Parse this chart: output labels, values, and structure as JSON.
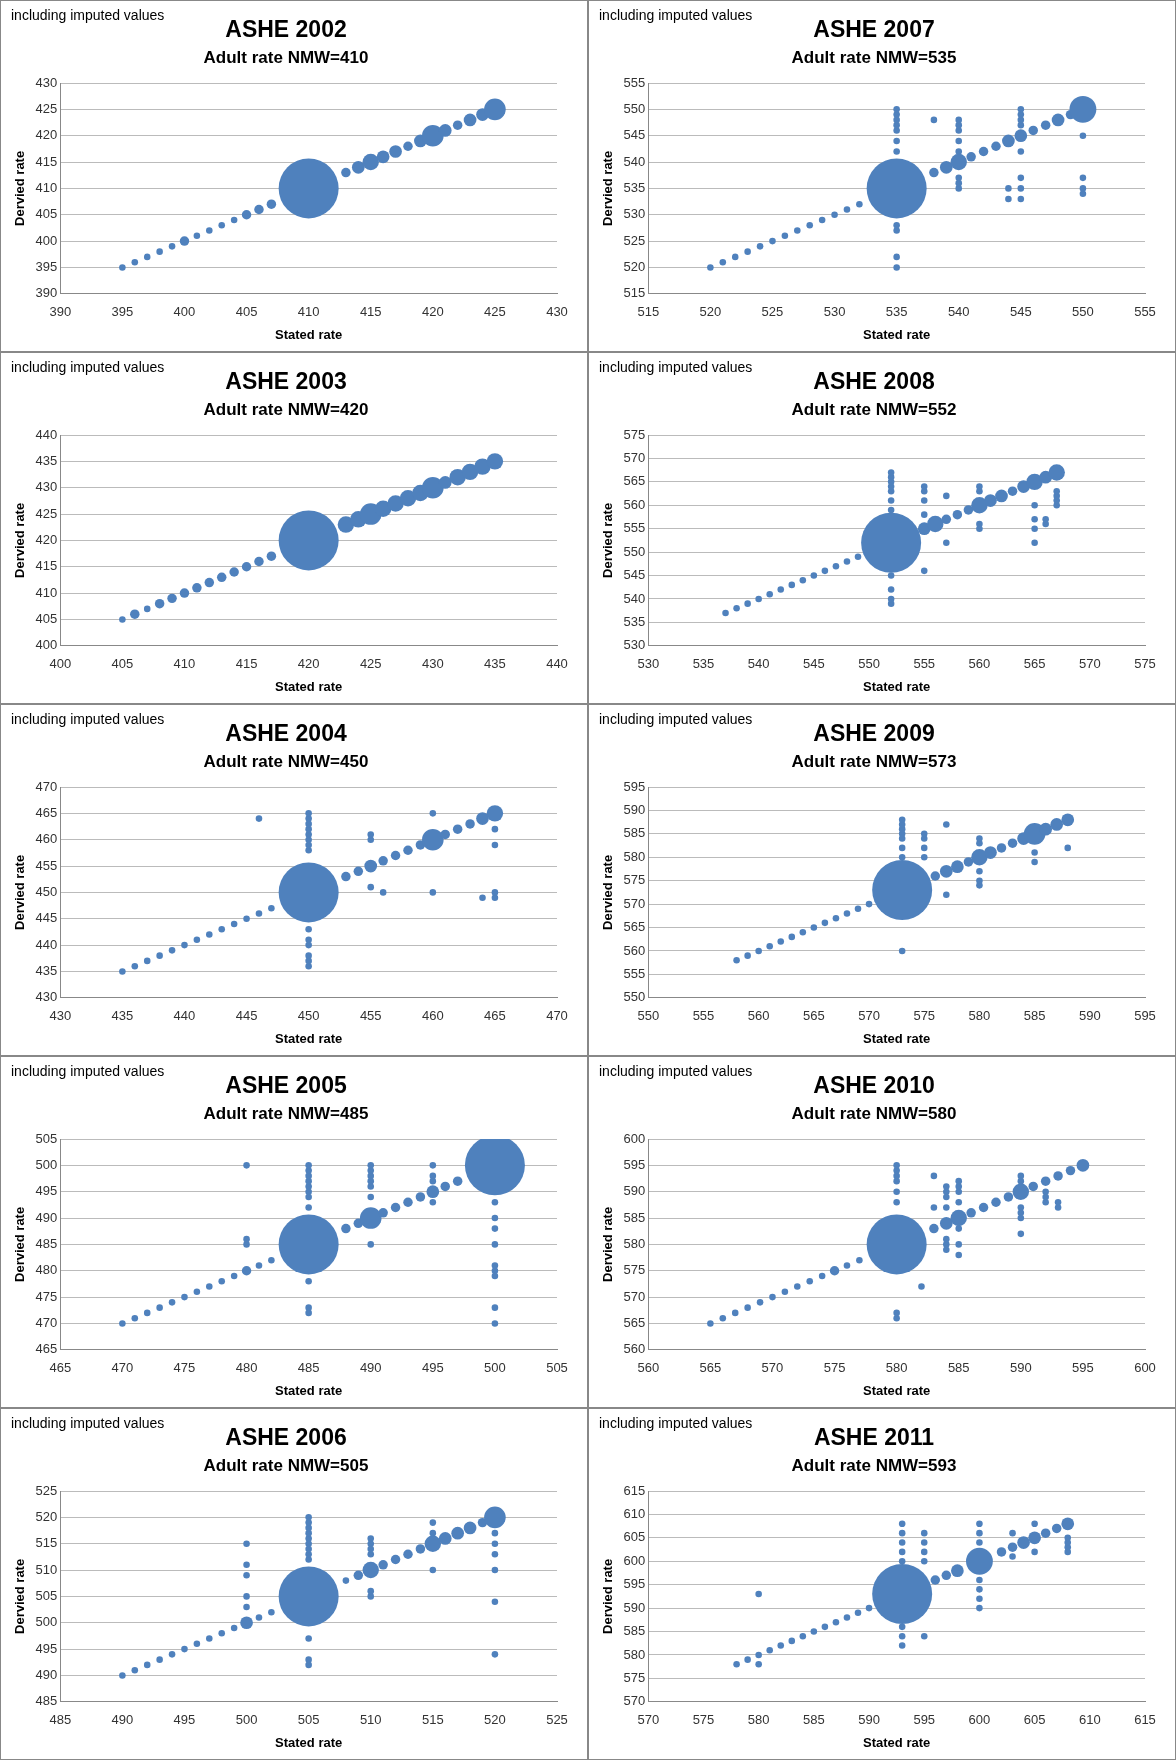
{
  "chart_data": [
    {
      "type": "bubble",
      "title": "ASHE 2002",
      "subtitle": "Adult rate NMW=410",
      "xlabel": "Stated rate",
      "ylabel": "Dervied rate",
      "annotations": [
        "including imputed values"
      ],
      "color": "#4f81bd",
      "grid": "y",
      "x": [
        395,
        396,
        397,
        398,
        399,
        400,
        401,
        402,
        403,
        404,
        405,
        406,
        407,
        410,
        413,
        414,
        415,
        416,
        417,
        418,
        419,
        420,
        421,
        422,
        423,
        424,
        425
      ],
      "values": [
        395,
        396,
        397,
        398,
        399,
        400,
        401,
        402,
        403,
        404,
        405,
        406,
        407,
        410,
        413,
        414,
        415,
        416,
        417,
        418,
        419,
        420,
        421,
        422,
        423,
        424,
        425
      ],
      "sizes": [
        0.012,
        0.012,
        0.012,
        0.012,
        0.012,
        0.025,
        0.012,
        0.012,
        0.012,
        0.012,
        0.025,
        0.025,
        0.025,
        1,
        0.025,
        0.045,
        0.075,
        0.045,
        0.045,
        0.025,
        0.045,
        0.13,
        0.045,
        0.025,
        0.045,
        0.045,
        0.13
      ],
      "xlim": [
        390,
        430
      ],
      "xticks": [
        390,
        395,
        400,
        405,
        410,
        415,
        420,
        425,
        430
      ],
      "ylim": [
        390,
        430
      ],
      "yticks": [
        390,
        395,
        400,
        405,
        410,
        415,
        420,
        425,
        430
      ]
    },
    {
      "type": "bubble",
      "title": "ASHE 2007",
      "subtitle": "Adult rate NMW=535",
      "xlabel": "Stated rate",
      "ylabel": "Dervied rate",
      "annotations": [
        "including imputed values"
      ],
      "color": "#4f81bd",
      "grid": "y",
      "x": [
        520,
        521,
        522,
        523,
        524,
        525,
        526,
        527,
        528,
        529,
        530,
        531,
        532,
        535,
        538,
        539,
        540,
        541,
        542,
        543,
        544,
        545,
        546,
        547,
        548,
        549,
        550,
        535,
        535,
        535,
        535,
        535,
        535,
        535,
        535,
        535,
        535,
        535,
        540,
        540,
        540,
        540,
        540,
        540,
        540,
        540,
        545,
        545,
        545,
        545,
        545,
        545,
        545,
        545,
        550,
        550,
        550,
        550,
        544,
        544,
        538
      ],
      "values": [
        520,
        521,
        522,
        523,
        524,
        525,
        526,
        527,
        528,
        529,
        530,
        531,
        532,
        535,
        538,
        539,
        540,
        541,
        542,
        543,
        544,
        545,
        546,
        547,
        548,
        549,
        550,
        520,
        522,
        527,
        528,
        542,
        544,
        546,
        547,
        548,
        549,
        550,
        535,
        536,
        537,
        542,
        544,
        546,
        547,
        548,
        533,
        535,
        537,
        542,
        547,
        548,
        549,
        550,
        534,
        535,
        537,
        545,
        533,
        535,
        548
      ],
      "sizes": [
        0.012,
        0.012,
        0.012,
        0.012,
        0.012,
        0.012,
        0.012,
        0.012,
        0.012,
        0.012,
        0.012,
        0.012,
        0.012,
        1,
        0.025,
        0.045,
        0.075,
        0.025,
        0.025,
        0.025,
        0.045,
        0.045,
        0.025,
        0.025,
        0.045,
        0.025,
        0.2,
        0.012,
        0.012,
        0.012,
        0.012,
        0.012,
        0.012,
        0.012,
        0.012,
        0.012,
        0.012,
        0.012,
        0.012,
        0.012,
        0.012,
        0.012,
        0.012,
        0.012,
        0.012,
        0.012,
        0.012,
        0.012,
        0.012,
        0.012,
        0.012,
        0.012,
        0.012,
        0.012,
        0.012,
        0.012,
        0.012,
        0.012,
        0.012,
        0.012,
        0.012
      ],
      "xlim": [
        515,
        555
      ],
      "xticks": [
        515,
        520,
        525,
        530,
        535,
        540,
        545,
        550,
        555
      ],
      "ylim": [
        515,
        555
      ],
      "yticks": [
        515,
        520,
        525,
        530,
        535,
        540,
        545,
        550,
        555
      ]
    },
    {
      "type": "bubble",
      "title": "ASHE 2003",
      "subtitle": "Adult rate NMW=420",
      "xlabel": "Stated rate",
      "ylabel": "Dervied rate",
      "annotations": [
        "including imputed values"
      ],
      "color": "#4f81bd",
      "grid": "y",
      "x": [
        405,
        406,
        407,
        408,
        409,
        410,
        411,
        412,
        413,
        414,
        415,
        416,
        417,
        420,
        423,
        424,
        425,
        426,
        427,
        428,
        429,
        430,
        431,
        432,
        433,
        434,
        435
      ],
      "values": [
        405,
        406,
        407,
        408,
        409,
        410,
        411,
        412,
        413,
        414,
        415,
        416,
        417,
        420,
        423,
        424,
        425,
        426,
        427,
        428,
        429,
        430,
        431,
        432,
        433,
        434,
        435
      ],
      "sizes": [
        0.012,
        0.025,
        0.012,
        0.025,
        0.025,
        0.025,
        0.025,
        0.025,
        0.025,
        0.025,
        0.025,
        0.025,
        0.025,
        1,
        0.075,
        0.075,
        0.13,
        0.075,
        0.075,
        0.075,
        0.075,
        0.13,
        0.045,
        0.075,
        0.075,
        0.075,
        0.075
      ],
      "xlim": [
        400,
        440
      ],
      "xticks": [
        400,
        405,
        410,
        415,
        420,
        425,
        430,
        435,
        440
      ],
      "ylim": [
        400,
        440
      ],
      "yticks": [
        400,
        405,
        410,
        415,
        420,
        425,
        430,
        435,
        440
      ]
    },
    {
      "type": "bubble",
      "title": "ASHE 2008",
      "subtitle": "Adult rate NMW=552",
      "xlabel": "Stated rate",
      "ylabel": "Dervied rate",
      "annotations": [
        "including imputed values"
      ],
      "color": "#4f81bd",
      "grid": "y",
      "x": [
        537,
        538,
        539,
        540,
        541,
        542,
        543,
        544,
        545,
        546,
        547,
        548,
        549,
        552,
        555,
        556,
        557,
        558,
        559,
        560,
        561,
        562,
        563,
        564,
        565,
        566,
        567,
        552,
        552,
        552,
        552,
        552,
        552,
        552,
        552,
        552,
        552,
        552,
        555,
        555,
        555,
        555,
        555,
        557,
        557,
        560,
        560,
        560,
        560,
        565,
        565,
        565,
        565,
        566,
        566,
        567,
        567,
        567,
        567
      ],
      "values": [
        537,
        538,
        539,
        540,
        541,
        542,
        543,
        544,
        545,
        546,
        547,
        548,
        549,
        552,
        555,
        556,
        557,
        558,
        559,
        560,
        561,
        562,
        563,
        564,
        565,
        566,
        567,
        539,
        540,
        542,
        545,
        559,
        561,
        563,
        564,
        565,
        566,
        567,
        546,
        558,
        561,
        563,
        564,
        552,
        562,
        555,
        556,
        563,
        564,
        552,
        555,
        557,
        560,
        556,
        557,
        560,
        561,
        562,
        563
      ],
      "sizes": [
        0.012,
        0.012,
        0.012,
        0.012,
        0.012,
        0.012,
        0.012,
        0.012,
        0.012,
        0.012,
        0.012,
        0.012,
        0.012,
        1,
        0.045,
        0.075,
        0.025,
        0.025,
        0.025,
        0.075,
        0.045,
        0.045,
        0.025,
        0.045,
        0.075,
        0.045,
        0.075,
        0.012,
        0.012,
        0.012,
        0.012,
        0.012,
        0.012,
        0.012,
        0.012,
        0.012,
        0.012,
        0.012,
        0.012,
        0.012,
        0.012,
        0.012,
        0.012,
        0.012,
        0.012,
        0.012,
        0.012,
        0.012,
        0.012,
        0.012,
        0.012,
        0.012,
        0.012,
        0.012,
        0.012,
        0.012,
        0.012,
        0.012,
        0.012
      ],
      "xlim": [
        530,
        575
      ],
      "xticks": [
        530,
        535,
        540,
        545,
        550,
        555,
        560,
        565,
        570,
        575
      ],
      "ylim": [
        530,
        575
      ],
      "yticks": [
        530,
        535,
        540,
        545,
        550,
        555,
        560,
        565,
        570,
        575
      ]
    },
    {
      "type": "bubble",
      "title": "ASHE 2004",
      "subtitle": "Adult rate NMW=450",
      "xlabel": "Stated rate",
      "ylabel": "Dervied rate",
      "annotations": [
        "including imputed values"
      ],
      "color": "#4f81bd",
      "grid": "y",
      "x": [
        435,
        436,
        437,
        438,
        439,
        440,
        441,
        442,
        443,
        444,
        445,
        446,
        447,
        450,
        453,
        454,
        455,
        456,
        457,
        458,
        459,
        460,
        461,
        462,
        463,
        464,
        465,
        450,
        450,
        450,
        450,
        450,
        450,
        450,
        450,
        450,
        450,
        450,
        450,
        450,
        450,
        446,
        455,
        455,
        455,
        460,
        460,
        465,
        465,
        465,
        465,
        464,
        456
      ],
      "values": [
        435,
        436,
        437,
        438,
        439,
        440,
        441,
        442,
        443,
        444,
        445,
        446,
        447,
        450,
        453,
        454,
        455,
        456,
        457,
        458,
        459,
        460,
        461,
        462,
        463,
        464,
        465,
        436,
        437,
        438,
        440,
        441,
        443,
        458,
        459,
        460,
        461,
        462,
        463,
        464,
        465,
        464,
        451,
        460,
        461,
        450,
        465,
        449,
        450,
        459,
        462,
        449,
        450
      ],
      "sizes": [
        0.012,
        0.012,
        0.012,
        0.012,
        0.012,
        0.012,
        0.012,
        0.012,
        0.012,
        0.012,
        0.012,
        0.012,
        0.012,
        1,
        0.025,
        0.025,
        0.045,
        0.025,
        0.025,
        0.025,
        0.025,
        0.13,
        0.025,
        0.025,
        0.025,
        0.045,
        0.075,
        0.012,
        0.012,
        0.012,
        0.012,
        0.012,
        0.012,
        0.012,
        0.012,
        0.012,
        0.012,
        0.012,
        0.012,
        0.012,
        0.012,
        0.012,
        0.012,
        0.012,
        0.012,
        0.012,
        0.012,
        0.012,
        0.012,
        0.012,
        0.012,
        0.012,
        0.012
      ],
      "xlim": [
        430,
        470
      ],
      "xticks": [
        430,
        435,
        440,
        445,
        450,
        455,
        460,
        465,
        470
      ],
      "ylim": [
        430,
        470
      ],
      "yticks": [
        430,
        435,
        440,
        445,
        450,
        455,
        460,
        465,
        470
      ]
    },
    {
      "type": "bubble",
      "title": "ASHE 2009",
      "subtitle": "Adult rate NMW=573",
      "xlabel": "Stated rate",
      "ylabel": "Dervied rate",
      "annotations": [
        "including imputed values"
      ],
      "color": "#4f81bd",
      "grid": "y",
      "x": [
        558,
        559,
        560,
        561,
        562,
        563,
        564,
        565,
        566,
        567,
        568,
        569,
        570,
        573,
        576,
        577,
        578,
        579,
        580,
        581,
        582,
        583,
        584,
        585,
        586,
        587,
        588,
        573,
        573,
        573,
        573,
        573,
        573,
        573,
        573,
        575,
        575,
        575,
        575,
        577,
        577,
        580,
        580,
        580,
        580,
        580,
        585,
        585,
        588
      ],
      "values": [
        558,
        559,
        560,
        561,
        562,
        563,
        564,
        565,
        566,
        567,
        568,
        569,
        570,
        573,
        576,
        577,
        578,
        579,
        580,
        581,
        582,
        583,
        584,
        585,
        586,
        587,
        588,
        560,
        580,
        582,
        584,
        585,
        586,
        587,
        588,
        580,
        582,
        584,
        585,
        572,
        587,
        574,
        575,
        577,
        583,
        584,
        579,
        581,
        582
      ],
      "sizes": [
        0.012,
        0.012,
        0.012,
        0.012,
        0.012,
        0.012,
        0.012,
        0.012,
        0.012,
        0.012,
        0.012,
        0.012,
        0.012,
        1,
        0.025,
        0.045,
        0.045,
        0.025,
        0.075,
        0.045,
        0.025,
        0.025,
        0.045,
        0.13,
        0.045,
        0.045,
        0.045,
        0.012,
        0.012,
        0.012,
        0.012,
        0.012,
        0.012,
        0.012,
        0.012,
        0.012,
        0.012,
        0.012,
        0.012,
        0.012,
        0.012,
        0.012,
        0.012,
        0.012,
        0.012,
        0.012,
        0.012,
        0.012,
        0.012
      ],
      "xlim": [
        550,
        595
      ],
      "xticks": [
        550,
        555,
        560,
        565,
        570,
        575,
        580,
        585,
        590,
        595
      ],
      "ylim": [
        550,
        595
      ],
      "yticks": [
        550,
        555,
        560,
        565,
        570,
        575,
        580,
        585,
        590,
        595
      ]
    },
    {
      "type": "bubble",
      "title": "ASHE 2005",
      "subtitle": "Adult rate NMW=485",
      "xlabel": "Stated rate",
      "ylabel": "Dervied rate",
      "annotations": [
        "including imputed values"
      ],
      "color": "#4f81bd",
      "grid": "y",
      "x": [
        470,
        471,
        472,
        473,
        474,
        475,
        476,
        477,
        478,
        479,
        480,
        481,
        482,
        485,
        488,
        489,
        490,
        491,
        492,
        493,
        494,
        495,
        496,
        497,
        500,
        485,
        485,
        485,
        485,
        485,
        485,
        485,
        485,
        485,
        485,
        485,
        480,
        480,
        480,
        490,
        490,
        490,
        490,
        490,
        490,
        490,
        495,
        495,
        495,
        495,
        500,
        500,
        500,
        500,
        500,
        500,
        500,
        500,
        500
      ],
      "values": [
        470,
        471,
        472,
        473,
        474,
        475,
        476,
        477,
        478,
        479,
        480,
        481,
        482,
        485,
        488,
        489,
        490,
        491,
        492,
        493,
        494,
        495,
        496,
        497,
        500,
        472,
        473,
        478,
        492,
        494,
        495,
        496,
        497,
        498,
        499,
        500,
        485,
        486,
        500,
        485,
        494,
        496,
        497,
        498,
        499,
        500,
        493,
        497,
        498,
        500,
        470,
        473,
        479,
        480,
        481,
        485,
        488,
        490,
        493
      ],
      "sizes": [
        0.012,
        0.012,
        0.012,
        0.012,
        0.012,
        0.012,
        0.012,
        0.012,
        0.012,
        0.012,
        0.025,
        0.012,
        0.012,
        1,
        0.025,
        0.025,
        0.13,
        0.025,
        0.025,
        0.025,
        0.025,
        0.045,
        0.025,
        0.025,
        1,
        0.012,
        0.012,
        0.012,
        0.012,
        0.012,
        0.012,
        0.012,
        0.012,
        0.012,
        0.012,
        0.012,
        0.012,
        0.012,
        0.012,
        0.012,
        0.012,
        0.012,
        0.012,
        0.012,
        0.012,
        0.012,
        0.012,
        0.012,
        0.012,
        0.012,
        0.012,
        0.012,
        0.012,
        0.012,
        0.012,
        0.012,
        0.012,
        0.012,
        0.012
      ],
      "xlim": [
        465,
        505
      ],
      "xticks": [
        465,
        470,
        475,
        480,
        485,
        490,
        495,
        500,
        505
      ],
      "ylim": [
        465,
        505
      ],
      "yticks": [
        465,
        470,
        475,
        480,
        485,
        490,
        495,
        500,
        505
      ]
    },
    {
      "type": "bubble",
      "title": "ASHE 2010",
      "subtitle": "Adult rate NMW=580",
      "xlabel": "Stated rate",
      "ylabel": "Dervied rate",
      "annotations": [
        "including imputed values"
      ],
      "color": "#4f81bd",
      "grid": "y",
      "x": [
        565,
        566,
        567,
        568,
        569,
        570,
        571,
        572,
        573,
        574,
        575,
        576,
        577,
        580,
        583,
        584,
        585,
        586,
        587,
        588,
        589,
        590,
        591,
        592,
        593,
        594,
        595,
        580,
        580,
        580,
        580,
        580,
        580,
        580,
        580,
        582,
        583,
        583,
        584,
        584,
        584,
        584,
        584,
        584,
        584,
        585,
        585,
        585,
        585,
        585,
        585,
        585,
        590,
        590,
        590,
        590,
        590,
        590,
        592,
        592,
        592,
        593,
        593
      ],
      "values": [
        565,
        566,
        567,
        568,
        569,
        570,
        571,
        572,
        573,
        574,
        575,
        576,
        577,
        580,
        583,
        584,
        585,
        586,
        587,
        588,
        589,
        590,
        591,
        592,
        593,
        594,
        595,
        566,
        567,
        588,
        590,
        592,
        593,
        594,
        595,
        572,
        587,
        593,
        579,
        580,
        581,
        587,
        589,
        590,
        591,
        578,
        580,
        583,
        588,
        590,
        591,
        592,
        582,
        585,
        586,
        587,
        592,
        593,
        588,
        589,
        590,
        587,
        588
      ],
      "sizes": [
        0.012,
        0.012,
        0.012,
        0.012,
        0.012,
        0.012,
        0.012,
        0.012,
        0.012,
        0.012,
        0.025,
        0.012,
        0.012,
        1,
        0.025,
        0.045,
        0.075,
        0.025,
        0.025,
        0.025,
        0.025,
        0.075,
        0.025,
        0.025,
        0.025,
        0.025,
        0.045,
        0.012,
        0.012,
        0.012,
        0.012,
        0.012,
        0.012,
        0.012,
        0.012,
        0.012,
        0.012,
        0.012,
        0.012,
        0.012,
        0.012,
        0.012,
        0.012,
        0.012,
        0.012,
        0.012,
        0.012,
        0.012,
        0.012,
        0.012,
        0.012,
        0.012,
        0.012,
        0.012,
        0.012,
        0.012,
        0.012,
        0.012,
        0.012,
        0.012,
        0.012,
        0.012,
        0.012
      ],
      "xlim": [
        560,
        600
      ],
      "xticks": [
        560,
        565,
        570,
        575,
        580,
        585,
        590,
        595,
        600
      ],
      "ylim": [
        560,
        600
      ],
      "yticks": [
        560,
        565,
        570,
        575,
        580,
        585,
        590,
        595,
        600
      ]
    },
    {
      "type": "bubble",
      "title": "ASHE 2006",
      "subtitle": "Adult rate NMW=505",
      "xlabel": "Stated rate",
      "ylabel": "Dervied rate",
      "annotations": [
        "including imputed values"
      ],
      "color": "#4f81bd",
      "grid": "y",
      "x": [
        490,
        491,
        492,
        493,
        494,
        495,
        496,
        497,
        498,
        499,
        500,
        501,
        502,
        505,
        508,
        509,
        510,
        511,
        512,
        513,
        514,
        515,
        516,
        517,
        518,
        519,
        520,
        505,
        505,
        505,
        505,
        505,
        505,
        505,
        505,
        505,
        505,
        505,
        505,
        500,
        500,
        500,
        500,
        500,
        510,
        510,
        510,
        510,
        510,
        510,
        515,
        515,
        515,
        520,
        520,
        520,
        520,
        520,
        520
      ],
      "values": [
        490,
        491,
        492,
        493,
        494,
        495,
        496,
        497,
        498,
        499,
        500,
        501,
        502,
        505,
        508,
        509,
        510,
        511,
        512,
        513,
        514,
        515,
        516,
        517,
        518,
        519,
        520,
        492,
        493,
        497,
        512,
        513,
        514,
        515,
        516,
        517,
        518,
        519,
        520,
        503,
        505,
        509,
        511,
        515,
        505,
        506,
        513,
        514,
        515,
        516,
        510,
        517,
        519,
        494,
        504,
        510,
        513,
        515,
        517
      ],
      "sizes": [
        0.012,
        0.012,
        0.012,
        0.012,
        0.012,
        0.012,
        0.012,
        0.012,
        0.012,
        0.012,
        0.045,
        0.012,
        0.012,
        1,
        0.012,
        0.025,
        0.075,
        0.025,
        0.025,
        0.025,
        0.025,
        0.075,
        0.045,
        0.045,
        0.045,
        0.025,
        0.13,
        0.012,
        0.012,
        0.012,
        0.012,
        0.012,
        0.012,
        0.012,
        0.012,
        0.012,
        0.012,
        0.012,
        0.012,
        0.012,
        0.012,
        0.012,
        0.012,
        0.012,
        0.012,
        0.012,
        0.012,
        0.012,
        0.012,
        0.012,
        0.012,
        0.012,
        0.012,
        0.012,
        0.012,
        0.012,
        0.012,
        0.012,
        0.012
      ],
      "xlim": [
        485,
        525
      ],
      "xticks": [
        485,
        490,
        495,
        500,
        505,
        510,
        515,
        520,
        525
      ],
      "ylim": [
        485,
        525
      ],
      "yticks": [
        485,
        490,
        495,
        500,
        505,
        510,
        515,
        520,
        525
      ]
    },
    {
      "type": "bubble",
      "title": "ASHE 2011",
      "subtitle": "Adult rate NMW=593",
      "xlabel": "Stated rate",
      "ylabel": "Dervied rate",
      "annotations": [
        "including imputed values"
      ],
      "color": "#4f81bd",
      "grid": "y",
      "x": [
        578,
        579,
        580,
        581,
        582,
        583,
        584,
        585,
        586,
        587,
        588,
        589,
        590,
        593,
        596,
        597,
        598,
        600,
        602,
        603,
        604,
        605,
        606,
        607,
        608,
        593,
        593,
        593,
        593,
        593,
        593,
        593,
        593,
        580,
        580,
        595,
        595,
        595,
        595,
        595,
        600,
        600,
        600,
        600,
        600,
        600,
        600,
        603,
        603,
        605,
        605,
        608,
        608,
        608,
        608
      ],
      "values": [
        578,
        579,
        580,
        581,
        582,
        583,
        584,
        585,
        586,
        587,
        588,
        589,
        590,
        593,
        596,
        597,
        598,
        600,
        602,
        603,
        604,
        605,
        606,
        607,
        608,
        582,
        584,
        586,
        600,
        602,
        604,
        606,
        608,
        578,
        593,
        584,
        600,
        602,
        604,
        606,
        590,
        592,
        594,
        596,
        604,
        606,
        608,
        601,
        606,
        602,
        608,
        602,
        603,
        604,
        605
      ],
      "sizes": [
        0.012,
        0.012,
        0.012,
        0.012,
        0.012,
        0.012,
        0.012,
        0.012,
        0.012,
        0.012,
        0.012,
        0.012,
        0.012,
        1,
        0.025,
        0.025,
        0.045,
        0.2,
        0.025,
        0.025,
        0.045,
        0.045,
        0.025,
        0.025,
        0.045,
        0.012,
        0.012,
        0.012,
        0.012,
        0.012,
        0.012,
        0.012,
        0.012,
        0.012,
        0.012,
        0.012,
        0.012,
        0.012,
        0.012,
        0.012,
        0.012,
        0.012,
        0.012,
        0.012,
        0.012,
        0.012,
        0.012,
        0.012,
        0.012,
        0.012,
        0.012,
        0.012,
        0.012,
        0.012,
        0.012
      ],
      "xlim": [
        570,
        615
      ],
      "xticks": [
        570,
        575,
        580,
        585,
        590,
        595,
        600,
        605,
        610,
        615
      ],
      "ylim": [
        570,
        615
      ],
      "yticks": [
        570,
        575,
        580,
        585,
        590,
        595,
        600,
        605,
        610,
        615
      ]
    }
  ]
}
